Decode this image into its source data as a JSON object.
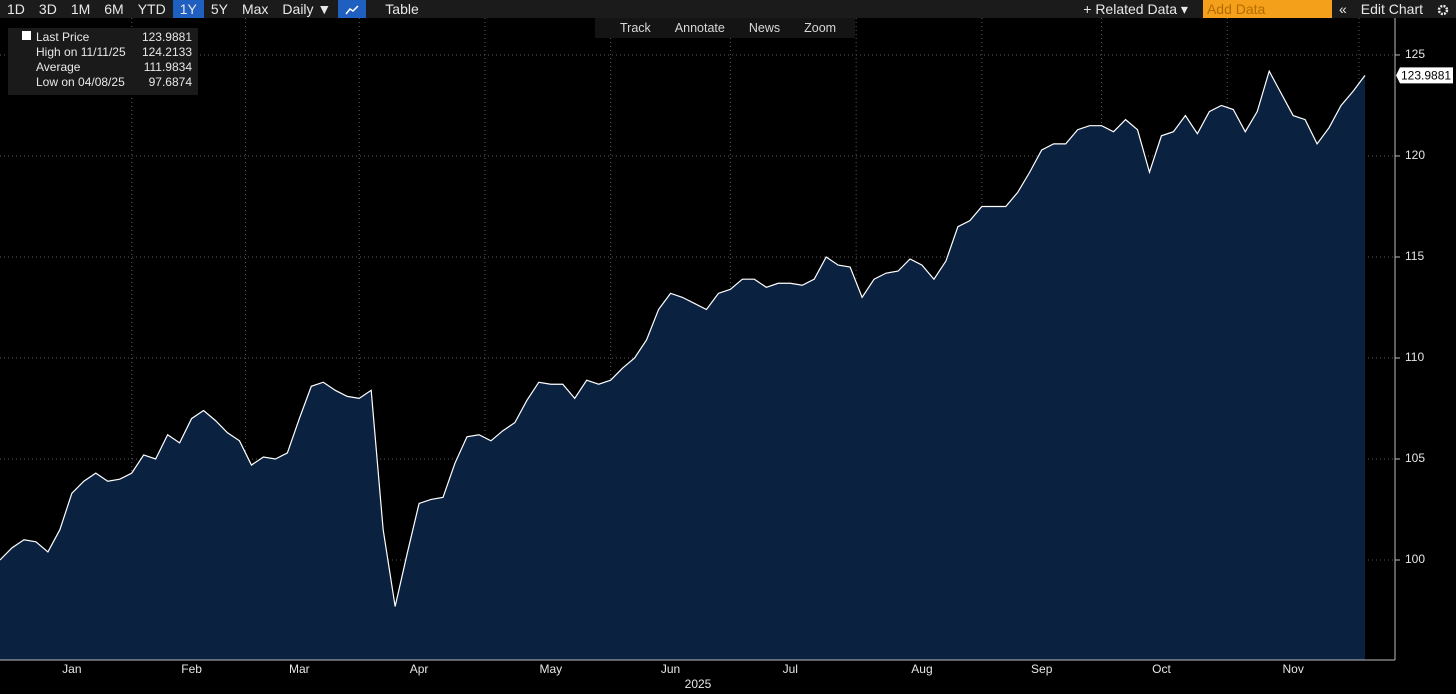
{
  "toolbar": {
    "ranges": [
      "1D",
      "3D",
      "1M",
      "6M",
      "YTD",
      "1Y",
      "5Y",
      "Max"
    ],
    "active_range": "1Y",
    "frequency": "Daily ▼",
    "table": "Table",
    "related": "+ Related Data ▾",
    "add_data": "Add Data",
    "collapse": "«",
    "edit": "Edit Chart"
  },
  "tools": [
    "Track",
    "Annotate",
    "News",
    "Zoom"
  ],
  "legend_box": [
    {
      "label": "Last Price",
      "value": 123.9881
    },
    {
      "label": "High on 11/11/25",
      "value": 124.2133
    },
    {
      "label": "Average",
      "value": 111.9834
    },
    {
      "label": "Low on 04/08/25",
      "value": 97.6874
    }
  ],
  "chart_data": {
    "type": "area",
    "color": "#ffffff",
    "fill": "#0b2140",
    "grid": true,
    "y_axis": "right",
    "xlabel": "2025",
    "ylim": [
      95.05,
      126.83
    ],
    "yticks": [
      100,
      105,
      110,
      115,
      120,
      125
    ],
    "categories": [
      null,
      null,
      null,
      null,
      null,
      null,
      "Jan",
      null,
      null,
      null,
      null,
      null,
      null,
      null,
      null,
      null,
      "Feb",
      null,
      null,
      null,
      null,
      null,
      null,
      null,
      null,
      "Mar",
      null,
      null,
      null,
      null,
      null,
      null,
      null,
      null,
      null,
      "Apr",
      null,
      null,
      null,
      null,
      null,
      null,
      null,
      null,
      null,
      null,
      "May",
      null,
      null,
      null,
      null,
      null,
      null,
      null,
      null,
      null,
      "Jun",
      null,
      null,
      null,
      null,
      null,
      null,
      null,
      null,
      null,
      "Jul",
      null,
      null,
      null,
      null,
      null,
      null,
      null,
      null,
      null,
      null,
      "Aug",
      null,
      null,
      null,
      null,
      null,
      null,
      null,
      null,
      null,
      "Sep",
      null,
      null,
      null,
      null,
      null,
      null,
      null,
      null,
      null,
      "Oct",
      null,
      null,
      null,
      null,
      null,
      null,
      null,
      null,
      null,
      null,
      "Nov",
      null,
      null,
      null,
      null,
      null,
      null
    ],
    "values": [
      100.0,
      100.6,
      101.0,
      100.9,
      100.4,
      101.5,
      103.3,
      103.9,
      104.3,
      103.9,
      104.0,
      104.3,
      105.2,
      105.0,
      106.2,
      105.8,
      107.0,
      107.4,
      106.9,
      106.3,
      105.9,
      104.7,
      105.1,
      105.0,
      105.3,
      107.0,
      108.6,
      108.8,
      108.4,
      108.1,
      108.0,
      108.4,
      101.5,
      97.7,
      100.3,
      102.8,
      103.0,
      103.1,
      104.8,
      106.1,
      106.2,
      105.9,
      106.4,
      106.8,
      107.9,
      108.8,
      108.7,
      108.7,
      108.0,
      108.9,
      108.7,
      108.9,
      109.5,
      110.0,
      110.9,
      112.4,
      113.2,
      113.0,
      112.7,
      112.4,
      113.2,
      113.4,
      113.9,
      113.9,
      113.5,
      113.7,
      113.7,
      113.6,
      113.9,
      115.0,
      114.6,
      114.5,
      113.0,
      113.9,
      114.2,
      114.3,
      114.9,
      114.6,
      113.9,
      114.8,
      116.5,
      116.8,
      117.5,
      117.5,
      117.5,
      118.2,
      119.2,
      120.3,
      120.6,
      120.6,
      121.3,
      121.5,
      121.5,
      121.2,
      121.8,
      121.3,
      119.2,
      121.0,
      121.2,
      122.0,
      121.1,
      122.2,
      122.5,
      122.3,
      121.2,
      122.2,
      124.2,
      123.1,
      122.0,
      121.8,
      120.6,
      121.4,
      122.5,
      123.2,
      123.9881
    ]
  }
}
